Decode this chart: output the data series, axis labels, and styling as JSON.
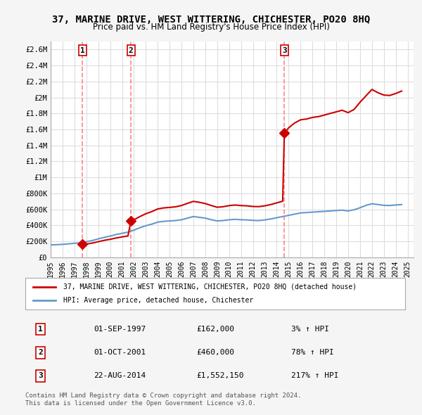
{
  "title": "37, MARINE DRIVE, WEST WITTERING, CHICHESTER, PO20 8HQ",
  "subtitle": "Price paid vs. HM Land Registry's House Price Index (HPI)",
  "ylabel_ticks": [
    "£0",
    "£200K",
    "£400K",
    "£600K",
    "£800K",
    "£1M",
    "£1.2M",
    "£1.4M",
    "£1.6M",
    "£1.8M",
    "£2M",
    "£2.2M",
    "£2.4M",
    "£2.6M"
  ],
  "ytick_values": [
    0,
    200000,
    400000,
    600000,
    800000,
    1000000,
    1200000,
    1400000,
    1600000,
    1800000,
    2000000,
    2200000,
    2400000,
    2600000
  ],
  "ylim": [
    0,
    2700000
  ],
  "xlim_start": 1995.0,
  "xlim_end": 2025.5,
  "sale_dates": [
    1997.67,
    2001.75,
    2014.64
  ],
  "sale_prices": [
    162000,
    460000,
    1552150
  ],
  "sale_labels": [
    "1",
    "2",
    "3"
  ],
  "red_line_color": "#cc0000",
  "blue_line_color": "#6699cc",
  "sale_marker_color": "#cc0000",
  "vline_color": "#ff6666",
  "background_color": "#f5f5f5",
  "plot_bg_color": "#ffffff",
  "grid_color": "#dddddd",
  "legend_entries": [
    "37, MARINE DRIVE, WEST WITTERING, CHICHESTER, PO20 8HQ (detached house)",
    "HPI: Average price, detached house, Chichester"
  ],
  "table_data": [
    [
      "1",
      "01-SEP-1997",
      "£162,000",
      "3% ↑ HPI"
    ],
    [
      "2",
      "01-OCT-2001",
      "£460,000",
      "78% ↑ HPI"
    ],
    [
      "3",
      "22-AUG-2014",
      "£1,552,150",
      "217% ↑ HPI"
    ]
  ],
  "footnote1": "Contains HM Land Registry data © Crown copyright and database right 2024.",
  "footnote2": "This data is licensed under the Open Government Licence v3.0.",
  "hpi_years": [
    1995.0,
    1995.5,
    1996.0,
    1996.5,
    1997.0,
    1997.5,
    1998.0,
    1998.5,
    1999.0,
    1999.5,
    2000.0,
    2000.5,
    2001.0,
    2001.5,
    2002.0,
    2002.5,
    2003.0,
    2003.5,
    2004.0,
    2004.5,
    2005.0,
    2005.5,
    2006.0,
    2006.5,
    2007.0,
    2007.5,
    2008.0,
    2008.5,
    2009.0,
    2009.5,
    2010.0,
    2010.5,
    2011.0,
    2011.5,
    2012.0,
    2012.5,
    2013.0,
    2013.5,
    2014.0,
    2014.5,
    2015.0,
    2015.5,
    2016.0,
    2016.5,
    2017.0,
    2017.5,
    2018.0,
    2018.5,
    2019.0,
    2019.5,
    2020.0,
    2020.5,
    2021.0,
    2021.5,
    2022.0,
    2022.5,
    2023.0,
    2023.5,
    2024.0,
    2024.5
  ],
  "hpi_values": [
    155000,
    158000,
    162000,
    168000,
    175000,
    180000,
    195000,
    210000,
    230000,
    250000,
    265000,
    285000,
    300000,
    315000,
    340000,
    370000,
    395000,
    415000,
    440000,
    450000,
    455000,
    460000,
    470000,
    490000,
    510000,
    500000,
    490000,
    470000,
    455000,
    460000,
    470000,
    475000,
    470000,
    468000,
    462000,
    460000,
    468000,
    480000,
    495000,
    510000,
    525000,
    540000,
    555000,
    560000,
    565000,
    570000,
    575000,
    580000,
    585000,
    590000,
    580000,
    595000,
    620000,
    650000,
    670000,
    660000,
    650000,
    648000,
    655000,
    660000
  ],
  "property_years": [
    1995.0,
    1995.5,
    1996.0,
    1996.5,
    1997.0,
    1997.5,
    1997.67,
    1998.0,
    1998.5,
    1999.0,
    1999.5,
    2000.0,
    2000.5,
    2001.0,
    2001.5,
    2001.75,
    2002.0,
    2002.5,
    2003.0,
    2003.5,
    2004.0,
    2004.5,
    2005.0,
    2005.5,
    2006.0,
    2006.5,
    2007.0,
    2007.5,
    2008.0,
    2008.5,
    2009.0,
    2009.5,
    2010.0,
    2010.5,
    2011.0,
    2011.5,
    2012.0,
    2012.5,
    2013.0,
    2013.5,
    2014.0,
    2014.5,
    2014.64,
    2015.0,
    2015.5,
    2016.0,
    2016.5,
    2017.0,
    2017.5,
    2018.0,
    2018.5,
    2019.0,
    2019.5,
    2020.0,
    2020.5,
    2021.0,
    2021.5,
    2022.0,
    2022.5,
    2023.0,
    2023.5,
    2024.0,
    2024.5
  ],
  "property_values": [
    null,
    null,
    null,
    null,
    null,
    null,
    162000,
    166000,
    178000,
    195000,
    212000,
    225000,
    242000,
    255000,
    267000,
    460000,
    470000,
    510000,
    545000,
    572000,
    605000,
    618000,
    624000,
    632000,
    648000,
    675000,
    700000,
    688000,
    672000,
    648000,
    626000,
    633000,
    647000,
    654000,
    647000,
    644000,
    636000,
    634000,
    644000,
    660000,
    681000,
    702000,
    1552150,
    1620000,
    1680000,
    1720000,
    1730000,
    1750000,
    1760000,
    1780000,
    1800000,
    1820000,
    1840000,
    1810000,
    1850000,
    1940000,
    2020000,
    2100000,
    2060000,
    2030000,
    2025000,
    2050000,
    2080000
  ]
}
